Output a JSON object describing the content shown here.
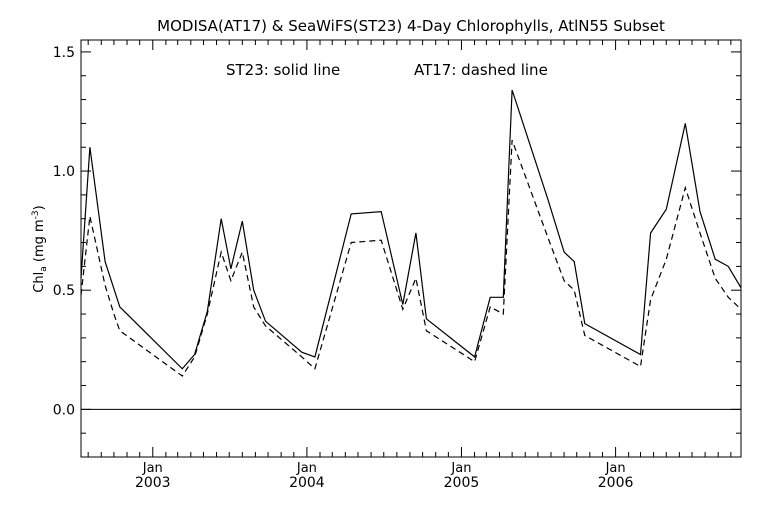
{
  "chart_data": {
    "type": "line",
    "title": "MODISA(AT17) & SeaWiFS(ST23) 4-Day Chlorophylls, AtlN55 Subset",
    "annotation_st23": "ST23: solid line",
    "annotation_at17": "AT17: dashed line",
    "ylabel": "Chl",
    "ylabel_sub": "a",
    "ylabel_unit_open": " (mg m",
    "ylabel_unit_sup": "-3",
    "ylabel_unit_close": ")",
    "xlim": [
      "2002-07-15",
      "2006-10-25"
    ],
    "ylim": [
      -0.2,
      1.55
    ],
    "x_ticks": [
      {
        "date": "2003-01-01",
        "month": "Jan",
        "year": "2003"
      },
      {
        "date": "2004-01-01",
        "month": "Jan",
        "year": "2004"
      },
      {
        "date": "2005-01-01",
        "month": "Jan",
        "year": "2005"
      },
      {
        "date": "2006-01-01",
        "month": "Jan",
        "year": "2006"
      }
    ],
    "y_ticks": [
      {
        "value": 0.0,
        "label": "0.0"
      },
      {
        "value": 0.5,
        "label": "0.5"
      },
      {
        "value": 1.0,
        "label": "1.0"
      },
      {
        "value": 1.5,
        "label": "1.5"
      }
    ],
    "reference_line_y": 0.0,
    "series": [
      {
        "name": "ST23",
        "style": "solid",
        "color": "#000000",
        "points": [
          {
            "x": "2002-07-15",
            "y": 0.55
          },
          {
            "x": "2002-08-05",
            "y": 1.1
          },
          {
            "x": "2002-09-10",
            "y": 0.62
          },
          {
            "x": "2002-10-15",
            "y": 0.43
          },
          {
            "x": "2003-03-12",
            "y": 0.17
          },
          {
            "x": "2003-04-10",
            "y": 0.23
          },
          {
            "x": "2003-05-10",
            "y": 0.41
          },
          {
            "x": "2003-06-12",
            "y": 0.8
          },
          {
            "x": "2003-07-05",
            "y": 0.59
          },
          {
            "x": "2003-08-01",
            "y": 0.79
          },
          {
            "x": "2003-08-28",
            "y": 0.5
          },
          {
            "x": "2003-09-25",
            "y": 0.37
          },
          {
            "x": "2003-12-20",
            "y": 0.24
          },
          {
            "x": "2004-01-20",
            "y": 0.22
          },
          {
            "x": "2004-04-15",
            "y": 0.82
          },
          {
            "x": "2004-06-25",
            "y": 0.83
          },
          {
            "x": "2004-08-15",
            "y": 0.44
          },
          {
            "x": "2004-09-15",
            "y": 0.74
          },
          {
            "x": "2004-10-10",
            "y": 0.38
          },
          {
            "x": "2005-02-01",
            "y": 0.22
          },
          {
            "x": "2005-03-10",
            "y": 0.47
          },
          {
            "x": "2005-04-10",
            "y": 0.47
          },
          {
            "x": "2005-05-01",
            "y": 1.34
          },
          {
            "x": "2005-07-25",
            "y": 0.88
          },
          {
            "x": "2005-09-01",
            "y": 0.66
          },
          {
            "x": "2005-09-25",
            "y": 0.62
          },
          {
            "x": "2005-10-20",
            "y": 0.36
          },
          {
            "x": "2006-03-01",
            "y": 0.23
          },
          {
            "x": "2006-03-25",
            "y": 0.74
          },
          {
            "x": "2006-05-01",
            "y": 0.84
          },
          {
            "x": "2006-06-15",
            "y": 1.2
          },
          {
            "x": "2006-07-20",
            "y": 0.83
          },
          {
            "x": "2006-08-25",
            "y": 0.63
          },
          {
            "x": "2006-09-25",
            "y": 0.6
          },
          {
            "x": "2006-10-25",
            "y": 0.51
          }
        ]
      },
      {
        "name": "AT17",
        "style": "dashed",
        "color": "#000000",
        "points": [
          {
            "x": "2002-07-15",
            "y": 0.48
          },
          {
            "x": "2002-08-05",
            "y": 0.81
          },
          {
            "x": "2002-09-10",
            "y": 0.52
          },
          {
            "x": "2002-10-01",
            "y": 0.4
          },
          {
            "x": "2002-10-15",
            "y": 0.33
          },
          {
            "x": "2003-03-12",
            "y": 0.14
          },
          {
            "x": "2003-04-10",
            "y": 0.22
          },
          {
            "x": "2003-05-10",
            "y": 0.4
          },
          {
            "x": "2003-06-12",
            "y": 0.66
          },
          {
            "x": "2003-07-05",
            "y": 0.54
          },
          {
            "x": "2003-08-01",
            "y": 0.66
          },
          {
            "x": "2003-08-28",
            "y": 0.43
          },
          {
            "x": "2003-09-25",
            "y": 0.35
          },
          {
            "x": "2003-12-20",
            "y": 0.22
          },
          {
            "x": "2004-01-20",
            "y": 0.17
          },
          {
            "x": "2004-04-15",
            "y": 0.7
          },
          {
            "x": "2004-06-25",
            "y": 0.71
          },
          {
            "x": "2004-08-15",
            "y": 0.42
          },
          {
            "x": "2004-09-15",
            "y": 0.55
          },
          {
            "x": "2004-10-10",
            "y": 0.33
          },
          {
            "x": "2005-02-01",
            "y": 0.2
          },
          {
            "x": "2005-03-10",
            "y": 0.43
          },
          {
            "x": "2005-04-10",
            "y": 0.4
          },
          {
            "x": "2005-05-01",
            "y": 1.13
          },
          {
            "x": "2005-07-25",
            "y": 0.72
          },
          {
            "x": "2005-09-01",
            "y": 0.54
          },
          {
            "x": "2005-09-25",
            "y": 0.5
          },
          {
            "x": "2005-10-20",
            "y": 0.31
          },
          {
            "x": "2006-03-01",
            "y": 0.18
          },
          {
            "x": "2006-03-25",
            "y": 0.46
          },
          {
            "x": "2006-05-01",
            "y": 0.63
          },
          {
            "x": "2006-06-15",
            "y": 0.93
          },
          {
            "x": "2006-07-20",
            "y": 0.74
          },
          {
            "x": "2006-08-25",
            "y": 0.55
          },
          {
            "x": "2006-09-25",
            "y": 0.47
          },
          {
            "x": "2006-10-25",
            "y": 0.42
          }
        ]
      }
    ]
  }
}
